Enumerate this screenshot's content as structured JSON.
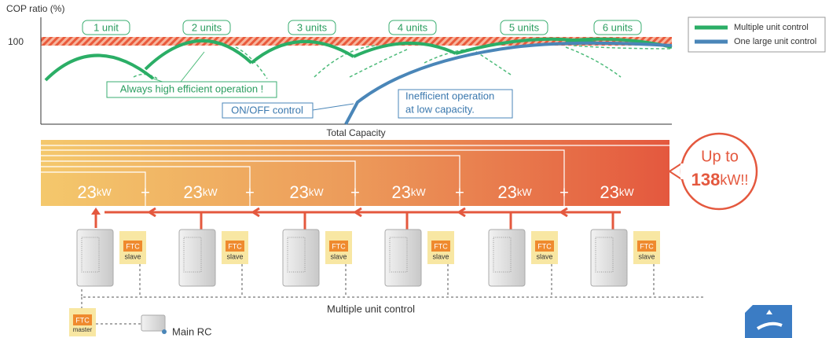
{
  "performance_chart": {
    "y_axis_label": "COP ratio (%)",
    "y_tick": "100",
    "x_axis_label": "Total Capacity",
    "unit_labels": [
      "1 unit",
      "2 units",
      "3 units",
      "4 units",
      "5 units",
      "6 units"
    ],
    "legend": [
      "Multiple unit control",
      "One large unit control"
    ],
    "callouts": {
      "high_efficiency": "Always high efficient operation !",
      "on_off": "ON/OFF control",
      "inefficient": [
        "Inefficient operation",
        "at low capacity."
      ]
    }
  },
  "capacity": {
    "blocks": [
      {
        "value": "23",
        "unit": "kW"
      },
      {
        "value": "23",
        "unit": "kW"
      },
      {
        "value": "23",
        "unit": "kW"
      },
      {
        "value": "23",
        "unit": "kW"
      },
      {
        "value": "23",
        "unit": "kW"
      },
      {
        "value": "23",
        "unit": "kW"
      }
    ],
    "total": {
      "prefix": "Up to",
      "value": "138",
      "unit": "kW!!"
    }
  },
  "system": {
    "units": [
      {
        "ftc": "FTC",
        "role": "slave"
      },
      {
        "ftc": "FTC",
        "role": "slave"
      },
      {
        "ftc": "FTC",
        "role": "slave"
      },
      {
        "ftc": "FTC",
        "role": "slave"
      },
      {
        "ftc": "FTC",
        "role": "slave"
      },
      {
        "ftc": "FTC",
        "role": "slave"
      }
    ],
    "master": {
      "ftc": "FTC",
      "role": "master"
    },
    "control_label": "Multiple unit control",
    "remote": "Main RC"
  }
}
